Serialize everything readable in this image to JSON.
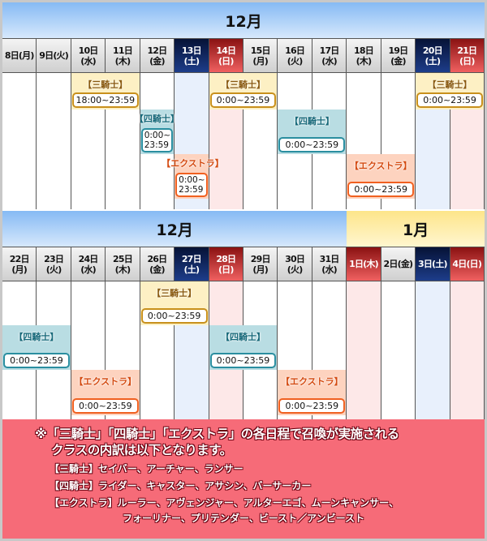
{
  "category_labels": [
    "【三騎士】",
    "【四騎士】",
    "【エクストラ】"
  ],
  "colors": {
    "sat": "#1d3d8a",
    "sun": "#d42a2a",
    "sankishi": "#fdf0c4",
    "yonkishi": "#b9dde3",
    "extra": "#fdd3bf",
    "note_bg": "#f66b78"
  },
  "rows": [
    {
      "months": [
        {
          "label": "12月",
          "span": 14,
          "style": "blue"
        }
      ],
      "days": [
        {
          "label": "8日(月)",
          "type": "wd"
        },
        {
          "label": "9日(火)",
          "type": "wd"
        },
        {
          "label": "10日(水)",
          "type": "wd"
        },
        {
          "label": "11日(木)",
          "type": "wd"
        },
        {
          "label": "12日(金)",
          "type": "wd"
        },
        {
          "label": "13日(土)",
          "type": "sat"
        },
        {
          "label": "14日(日)",
          "type": "sun"
        },
        {
          "label": "15日(月)",
          "type": "wd"
        },
        {
          "label": "16日(火)",
          "type": "wd"
        },
        {
          "label": "17日(水)",
          "type": "wd"
        },
        {
          "label": "18日(木)",
          "type": "wd"
        },
        {
          "label": "19日(金)",
          "type": "wd"
        },
        {
          "label": "20日(土)",
          "type": "sat"
        },
        {
          "label": "21日(日)",
          "type": "sun"
        }
      ],
      "events": [
        {
          "cat": 0,
          "start": 2,
          "span": 2,
          "time": "18:00~23:59"
        },
        {
          "cat": 0,
          "start": 6,
          "span": 2,
          "time": "0:00~23:59"
        },
        {
          "cat": 0,
          "start": 12,
          "span": 2,
          "time": "0:00~23:59"
        },
        {
          "cat": 1,
          "start": 4,
          "span": 1,
          "time": "0:00~23:59"
        },
        {
          "cat": 1,
          "start": 8,
          "span": 2,
          "time": "0:00~23:59"
        },
        {
          "cat": 2,
          "start": 5,
          "span": 1,
          "time": "0:00~23:59"
        },
        {
          "cat": 2,
          "start": 10,
          "span": 2,
          "time": "0:00~23:59"
        }
      ]
    },
    {
      "months": [
        {
          "label": "12月",
          "span": 10,
          "style": "blue"
        },
        {
          "label": "1月",
          "span": 4,
          "style": "yellow"
        }
      ],
      "days": [
        {
          "label": "22日(月)",
          "type": "wd"
        },
        {
          "label": "23日(火)",
          "type": "wd"
        },
        {
          "label": "24日(水)",
          "type": "wd"
        },
        {
          "label": "25日(木)",
          "type": "wd"
        },
        {
          "label": "26日(金)",
          "type": "wd"
        },
        {
          "label": "27日(土)",
          "type": "sat"
        },
        {
          "label": "28日(日)",
          "type": "sun"
        },
        {
          "label": "29日(月)",
          "type": "wd"
        },
        {
          "label": "30日(火)",
          "type": "wd"
        },
        {
          "label": "31日(水)",
          "type": "wd"
        },
        {
          "label": "1日(木)",
          "type": "sun"
        },
        {
          "label": "2日(金)",
          "type": "wd"
        },
        {
          "label": "3日(土)",
          "type": "sat"
        },
        {
          "label": "4日(日)",
          "type": "sun"
        }
      ],
      "events": [
        {
          "cat": 0,
          "start": 4,
          "span": 2,
          "time": "0:00~23:59"
        },
        {
          "cat": 1,
          "start": 0,
          "span": 2,
          "time": "0:00~23:59"
        },
        {
          "cat": 1,
          "start": 6,
          "span": 2,
          "time": "0:00~23:59"
        },
        {
          "cat": 2,
          "start": 2,
          "span": 2,
          "time": "0:00~23:59"
        },
        {
          "cat": 2,
          "start": 8,
          "span": 2,
          "time": "0:00~23:59"
        }
      ]
    }
  ],
  "note": {
    "heading_1": "※「三騎士」「四騎士」「エクストラ」の各日程で召喚が実施される",
    "heading_2": "クラスの内訳は以下となります。",
    "lines": [
      "【三騎士】セイバー、アーチャー、ランサー",
      "【四騎士】ライダー、キャスター、アサシン、バーサーカー",
      "【エクストラ】ルーラー、アヴェンジャー、アルターエゴ、ムーンキャンサー、",
      "フォーリナー、プリテンダー、ビースト／アンビースト"
    ]
  }
}
